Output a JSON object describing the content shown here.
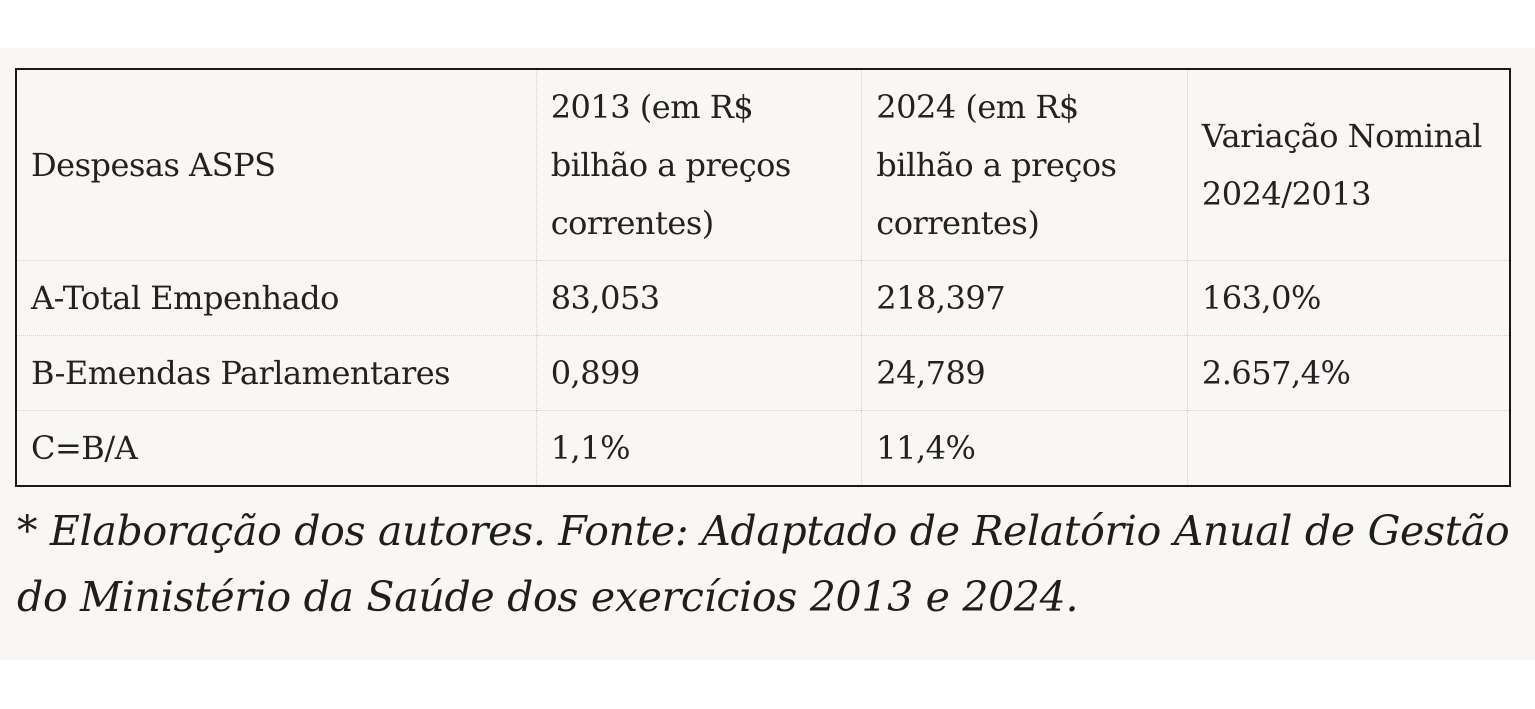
{
  "table": {
    "headers": [
      "Despesas ASPS",
      "2013 (em R$ bilhão a preços correntes)",
      "2024 (em R$ bilhão a preços correntes)",
      "Variação Nominal 2024/2013"
    ],
    "rows": [
      [
        "A-Total Empenhado",
        "83,053",
        "218,397",
        "163,0%"
      ],
      [
        "B-Emendas Parlamentares",
        "0,899",
        "24,789",
        "2.657,4%"
      ],
      [
        "C=B/A",
        "1,1%",
        "11,4%",
        ""
      ]
    ]
  },
  "footnote": "* Elaboração dos autores. Fonte: Adaptado de Relatório Anual de Gestão do Ministério da Saúde dos exercícios 2013 e 2024."
}
